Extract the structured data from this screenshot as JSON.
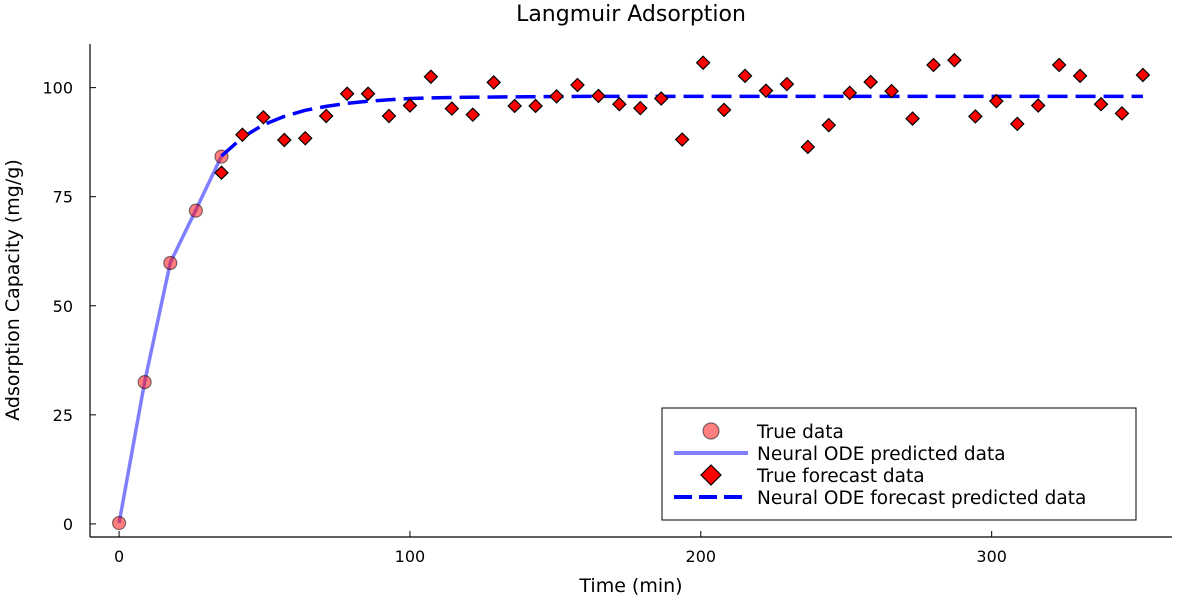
{
  "chart_data": {
    "type": "scatter",
    "title": "Langmuir Adsorption",
    "xlabel": "Time (min)",
    "ylabel": "Adsorption Capacity (mg/g)",
    "xlim": [
      -10,
      362
    ],
    "ylim": [
      -3,
      110
    ],
    "x_ticks": [
      0,
      100,
      200,
      300
    ],
    "y_ticks": [
      0,
      25,
      50,
      75,
      100
    ],
    "x_tick_labels": [
      "0",
      "100",
      "200",
      "300"
    ],
    "y_tick_labels": [
      "0",
      "25",
      "50",
      "75",
      "100"
    ],
    "grid": false,
    "legend_position": "bottom-right",
    "colors": {
      "true_data": "#ff0000",
      "predicted": "#0000ff",
      "forecast_marker": "#ff0000",
      "forecast_line": "#0000ff"
    },
    "series": [
      {
        "name": "True data",
        "kind": "circle-markers",
        "x": [
          0,
          8.8,
          17.6,
          26.4,
          35.2
        ],
        "y": [
          0.2,
          32.5,
          59.8,
          71.8,
          84.2
        ]
      },
      {
        "name": "Neural ODE predicted data",
        "kind": "solid-line",
        "x": [
          0,
          8.8,
          17.6,
          26.4,
          35.2
        ],
        "y": [
          0.2,
          32.6,
          59.9,
          72.0,
          84.3
        ]
      },
      {
        "name": "True forecast data",
        "kind": "diamond-markers",
        "x": [
          35.2,
          42.4,
          49.6,
          56.8,
          64.0,
          71.2,
          78.4,
          85.6,
          92.8,
          100.0,
          107.2,
          114.4,
          121.6,
          128.8,
          136.0,
          143.2,
          150.4,
          157.6,
          164.8,
          172.0,
          179.2,
          186.4,
          193.6,
          200.8,
          208.0,
          215.2,
          222.4,
          229.6,
          236.8,
          244.0,
          251.2,
          258.4,
          265.6,
          272.8,
          280.0,
          287.2,
          294.4,
          301.6,
          308.8,
          316.0,
          323.2,
          330.4,
          337.6,
          344.8,
          352.0
        ],
        "y": [
          80.5,
          89.2,
          93.2,
          88.0,
          88.4,
          93.5,
          98.6,
          98.6,
          93.5,
          95.9,
          102.5,
          95.2,
          93.8,
          101.2,
          95.8,
          95.8,
          98.0,
          100.6,
          98.1,
          96.2,
          95.3,
          97.5,
          88.1,
          105.7,
          94.9,
          102.7,
          99.3,
          100.8,
          86.4,
          91.4,
          98.8,
          101.3,
          99.2,
          92.9,
          105.2,
          106.3,
          93.4,
          96.9,
          91.7,
          95.9,
          105.2,
          102.7,
          96.2,
          94.1,
          102.9
        ]
      },
      {
        "name": "Neural ODE forecast predicted data",
        "kind": "dashed-line",
        "x": [
          35.2,
          42.4,
          49.6,
          56.8,
          64.0,
          71.2,
          78.4,
          85.6,
          92.8,
          100.0,
          110.0,
          120.0,
          140.0,
          160.0,
          200.0,
          250.0,
          300.0,
          352.0
        ],
        "y": [
          84.3,
          88.6,
          91.5,
          93.4,
          94.8,
          95.7,
          96.4,
          96.9,
          97.2,
          97.5,
          97.7,
          97.8,
          97.9,
          98.0,
          98.0,
          98.0,
          98.0,
          98.0
        ]
      }
    ]
  }
}
